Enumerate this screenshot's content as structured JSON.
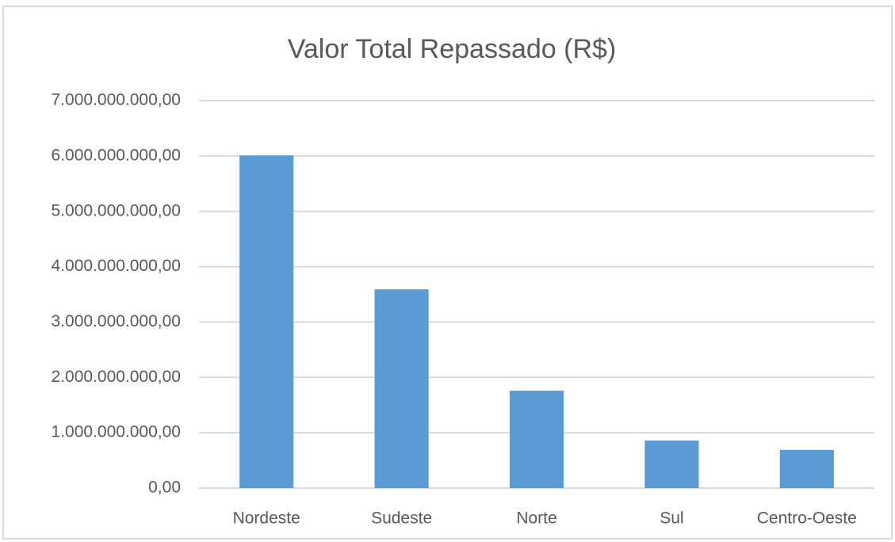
{
  "chart_data": {
    "type": "bar",
    "title": "Valor Total Repassado (R$)",
    "categories": [
      "Nordeste",
      "Sudeste",
      "Norte",
      "Sul",
      "Centro-Oeste"
    ],
    "values": [
      6010000000,
      3590000000,
      1760000000,
      860000000,
      690000000
    ],
    "color": "#5b9bd5",
    "ylim": [
      0,
      7000000000
    ],
    "yticks": [
      {
        "value": 0,
        "label": "0,00"
      },
      {
        "value": 1000000000,
        "label": "1.000.000.000,00"
      },
      {
        "value": 2000000000,
        "label": "2.000.000.000,00"
      },
      {
        "value": 3000000000,
        "label": "3.000.000.000,00"
      },
      {
        "value": 4000000000,
        "label": "4.000.000.000,00"
      },
      {
        "value": 5000000000,
        "label": "5.000.000.000,00"
      },
      {
        "value": 6000000000,
        "label": "6.000.000.000,00"
      },
      {
        "value": 7000000000,
        "label": "7.000.000.000,00"
      }
    ],
    "grid": true
  }
}
